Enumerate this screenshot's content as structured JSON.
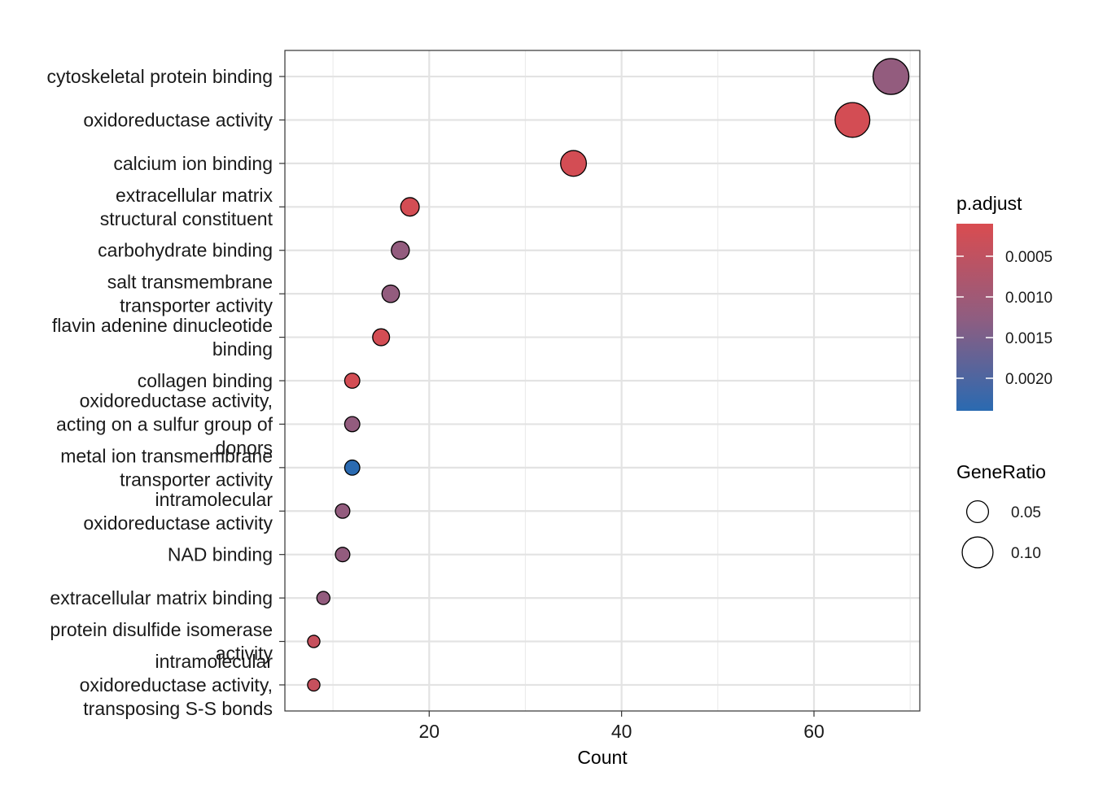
{
  "chart_data": {
    "type": "scatter",
    "title": "",
    "xlabel": "Count",
    "ylabel": "",
    "xlim": [
      5,
      71
    ],
    "xticks": [
      20,
      40,
      60
    ],
    "grid": true,
    "categories": [
      "cytoskeletal protein binding",
      "oxidoreductase activity",
      "calcium ion binding",
      "extracellular matrix structural constituent",
      "carbohydrate binding",
      "salt transmembrane transporter activity",
      "flavin adenine dinucleotide binding",
      "collagen binding",
      "oxidoreductase activity, acting on a sulfur group of donors",
      "metal ion transmembrane transporter activity",
      "intramolecular oxidoreductase activity",
      "NAD binding",
      "extracellular matrix binding",
      "protein disulfide isomerase activity",
      "intramolecular oxidoreductase activity, transposing S-S bonds"
    ],
    "category_label_lines": [
      [
        "cytoskeletal protein binding"
      ],
      [
        "oxidoreductase activity"
      ],
      [
        "calcium ion binding"
      ],
      [
        "extracellular matrix",
        "structural constituent"
      ],
      [
        "carbohydrate binding"
      ],
      [
        "salt transmembrane",
        "transporter activity"
      ],
      [
        "flavin adenine dinucleotide",
        "binding"
      ],
      [
        "collagen binding"
      ],
      [
        "oxidoreductase activity,",
        "acting on a sulfur group of",
        "donors"
      ],
      [
        "metal ion transmembrane",
        "transporter activity"
      ],
      [
        "intramolecular",
        "oxidoreductase activity"
      ],
      [
        "NAD binding"
      ],
      [
        "extracellular matrix binding"
      ],
      [
        "protein disulfide isomerase",
        "activity"
      ],
      [
        "intramolecular",
        "oxidoreductase activity,",
        "transposing S-S bonds"
      ]
    ],
    "count": [
      68,
      64,
      35,
      18,
      17,
      16,
      15,
      12,
      12,
      12,
      11,
      11,
      9,
      8,
      8
    ],
    "gene_ratio": [
      0.135,
      0.127,
      0.07,
      0.036,
      0.034,
      0.032,
      0.03,
      0.024,
      0.024,
      0.024,
      0.022,
      0.022,
      0.018,
      0.016,
      0.016
    ],
    "p_adjust": [
      0.0012,
      0.0002,
      0.0002,
      0.0002,
      0.0012,
      0.0012,
      0.0002,
      0.0002,
      0.0012,
      0.0024,
      0.0012,
      0.0012,
      0.0012,
      0.0004,
      0.0004
    ],
    "color_legend": {
      "title": "p.adjust",
      "low_color": "#D94C50",
      "high_color": "#2A6AB1",
      "range": [
        0.0001,
        0.0024
      ],
      "breaks": [
        0.0005,
        0.001,
        0.0015,
        0.002
      ],
      "labels": [
        "0.0005",
        "0.0010",
        "0.0015",
        "0.0020"
      ]
    },
    "size_legend": {
      "title": "GeneRatio",
      "breaks": [
        0.05,
        0.1
      ],
      "labels": [
        "0.05",
        "0.10"
      ]
    },
    "legend_position": "right"
  }
}
